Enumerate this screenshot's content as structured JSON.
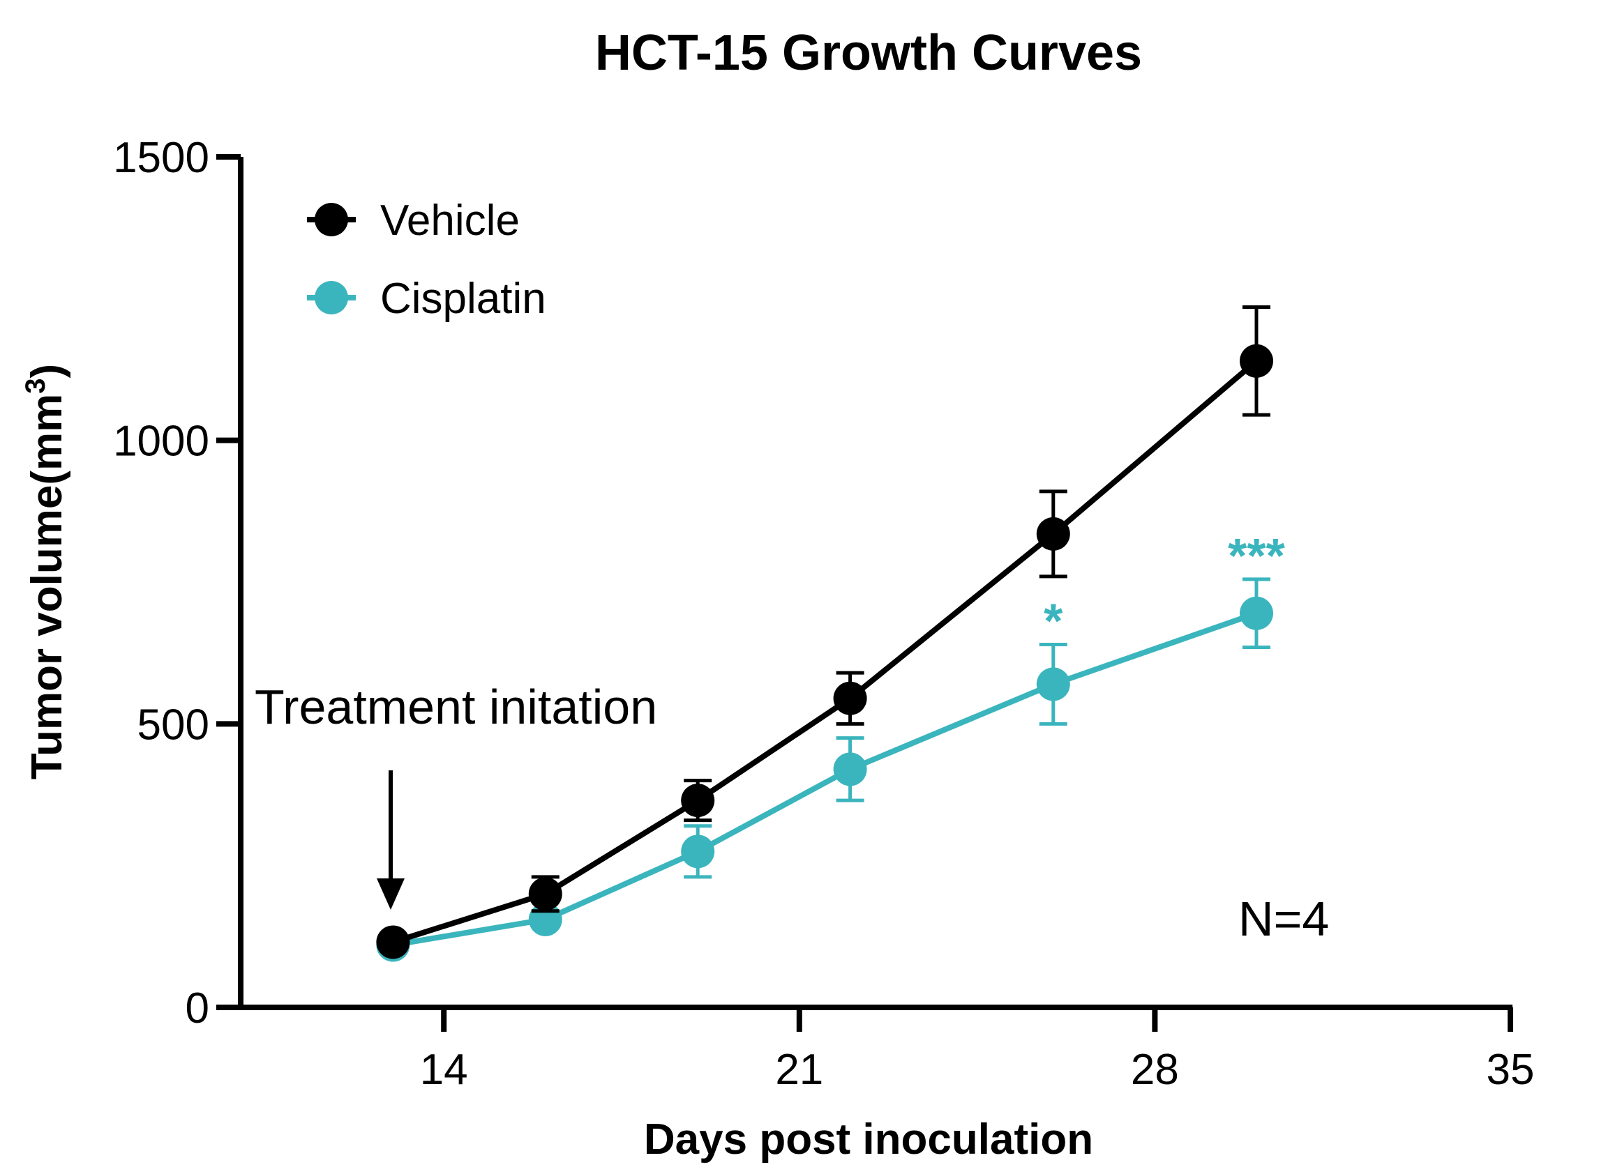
{
  "chart_data": {
    "type": "line",
    "title": "HCT-15 Growth Curves",
    "xlabel": "Days post inoculation",
    "ylabel": "Tumor volume(mm",
    "ylabel_superscript": "3",
    "ylabel_close": ")",
    "xlim": [
      10,
      35
    ],
    "ylim": [
      0,
      1500
    ],
    "x_ticks": [
      14,
      21,
      28,
      35
    ],
    "y_ticks": [
      0,
      500,
      1000,
      1500
    ],
    "grid": false,
    "legend_position": "top-left",
    "series": [
      {
        "name": "Vehicle",
        "color": "#000000",
        "x": [
          13,
          16,
          19,
          22,
          26,
          30
        ],
        "y": [
          115,
          200,
          365,
          545,
          835,
          1140
        ],
        "error": [
          8,
          30,
          35,
          45,
          75,
          95
        ]
      },
      {
        "name": "Cisplatin",
        "color": "#3bb5bd",
        "x": [
          13,
          16,
          19,
          22,
          26,
          30
        ],
        "y": [
          110,
          155,
          275,
          420,
          570,
          695
        ],
        "error": [
          8,
          12,
          45,
          55,
          70,
          60
        ],
        "significance": [
          "",
          "",
          "",
          "",
          "*",
          "***"
        ]
      }
    ],
    "annotations": {
      "treatment": "Treatment initation",
      "n": "N=4"
    }
  }
}
